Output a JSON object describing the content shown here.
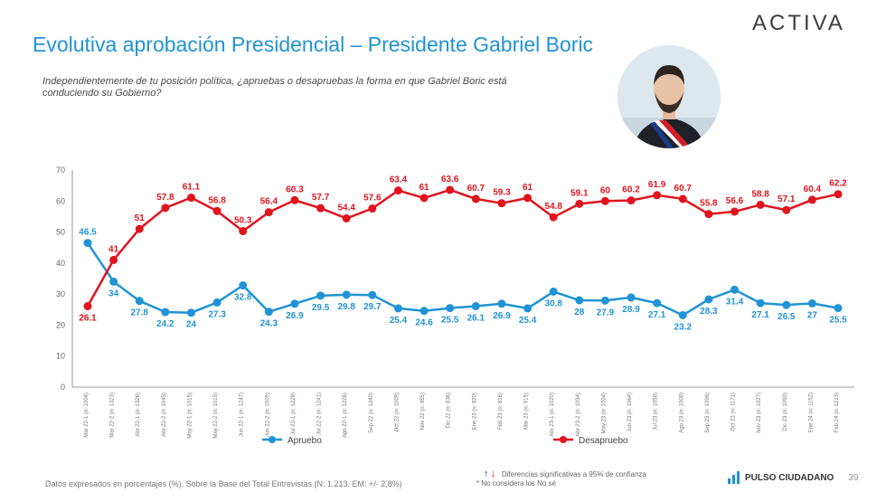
{
  "brand": "ACTIVA",
  "title": "Evolutiva aprobación Presidencial – Presidente Gabriel Boric",
  "question": "Independientemente de tu posición política, ¿apruebas o desapruebas la forma en que Gabriel Boric está conduciendo su Gobierno?",
  "footnote": "Datos expresados en porcentajes (%). Sobre la Base del Total Entrevistas (N: 1.213. EM: +/- 2,8%)",
  "significance_note": "Diferencias significativas a 95% de confianza",
  "ns_note": "* No considera los No sé",
  "footer_brand": "PULSO CIUDADANO",
  "page_number": "39",
  "chart_data": {
    "type": "line",
    "ylim": [
      0,
      70
    ],
    "yticks": [
      0,
      10,
      20,
      30,
      40,
      50,
      60,
      70
    ],
    "categories": [
      "Mar 22-1 (n: 1004)",
      "Mar 22-2 (n: 1323)",
      "Abr 22-1 (n: 1326)",
      "Abr 22-2 (n: 1045)",
      "May 22-1 (n: 1015)",
      "May 22-2 (n: 1015)",
      "Jun 22-1 (n: 1247)",
      "Jun 22-2 (n: 1005)",
      "Jul 22-1 (n: 1228)",
      "Jul 22-2 (n: 1241)",
      "Ago 22-1 (n: 1226)",
      "Sep 22 (n: 1240)",
      "Oct 22 (n: 1009)",
      "Nov 22 (n: 855)",
      "Dic 22 (n: 836)",
      "Ene 23 (n: 820)",
      "Feb 23 (n: 816)",
      "Mar 23 (n: 915)",
      "Abr 23-1 (n: 1020)",
      "Abr 23-2 (n: 1034)",
      "May 23 (n: 1004)",
      "Jun 23 (n: 1064)",
      "Jul 23 (n: 1058)",
      "Ago 23 (n: 1009)",
      "Sep 23 (n: 1096)",
      "Oct 23 (n: 1171)",
      "Nov 23 (n: 1027)",
      "Dic 23 (n: 1090)",
      "Ene 24 (n: 1152)",
      "Feb 24 (n: 1213)"
    ],
    "series": [
      {
        "name": "Apruebo",
        "color": "#1f93d6",
        "values": [
          46.5,
          34,
          27.8,
          24.2,
          24,
          27.3,
          32.8,
          24.3,
          26.9,
          29.5,
          29.8,
          29.7,
          25.4,
          24.6,
          25.5,
          26.1,
          26.9,
          25.4,
          30.8,
          28,
          27.9,
          28.9,
          27.1,
          23.2,
          28.3,
          31.4,
          27.1,
          26.5,
          27,
          25.5
        ]
      },
      {
        "name": "Desapruebo",
        "color": "#e0141e",
        "values": [
          26.1,
          41,
          51,
          57.8,
          61.1,
          56.8,
          50.3,
          56.4,
          60.3,
          57.7,
          54.4,
          57.6,
          63.4,
          61,
          63.6,
          60.7,
          59.3,
          61,
          54.8,
          59.1,
          60,
          60.2,
          61.9,
          60.7,
          55.8,
          56.6,
          58.8,
          57.1,
          60.4,
          62.2
        ]
      }
    ],
    "legend_position": "bottom",
    "grid": false
  }
}
